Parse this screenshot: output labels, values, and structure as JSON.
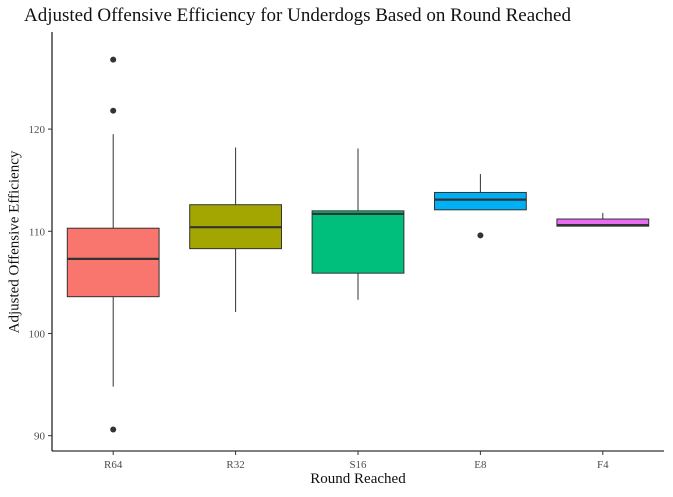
{
  "chart_data": {
    "type": "boxplot",
    "title": "Adjusted Offensive Efficiency for Underdogs Based on Round Reached",
    "xlabel": "Round Reached",
    "ylabel": "Adjusted Offensive Efficiency",
    "ylim": [
      88.5,
      129.5
    ],
    "yticks": [
      90,
      100,
      110,
      120
    ],
    "grid": false,
    "legend": "none",
    "categories": [
      "R64",
      "R32",
      "S16",
      "E8",
      "F4"
    ],
    "boxes": [
      {
        "category": "R64",
        "color": "#F8766D",
        "whisker_low": 94.8,
        "q1": 103.6,
        "median": 107.3,
        "q3": 110.3,
        "whisker_high": 119.5,
        "outliers": [
          90.6,
          121.8,
          126.8
        ]
      },
      {
        "category": "R32",
        "color": "#A3A500",
        "whisker_low": 102.1,
        "q1": 108.3,
        "median": 110.4,
        "q3": 112.6,
        "whisker_high": 118.2,
        "outliers": []
      },
      {
        "category": "S16",
        "color": "#00BF7D",
        "whisker_low": 103.3,
        "q1": 105.9,
        "median": 111.7,
        "q3": 112.0,
        "whisker_high": 118.1,
        "outliers": []
      },
      {
        "category": "E8",
        "color": "#00B0F6",
        "whisker_low": 112.1,
        "q1": 112.1,
        "median": 113.1,
        "q3": 113.8,
        "whisker_high": 115.6,
        "outliers": [
          109.6
        ]
      },
      {
        "category": "F4",
        "color": "#E76BF3",
        "whisker_low": 110.5,
        "q1": 110.5,
        "median": 110.6,
        "q3": 111.2,
        "whisker_high": 111.8,
        "outliers": []
      }
    ]
  }
}
